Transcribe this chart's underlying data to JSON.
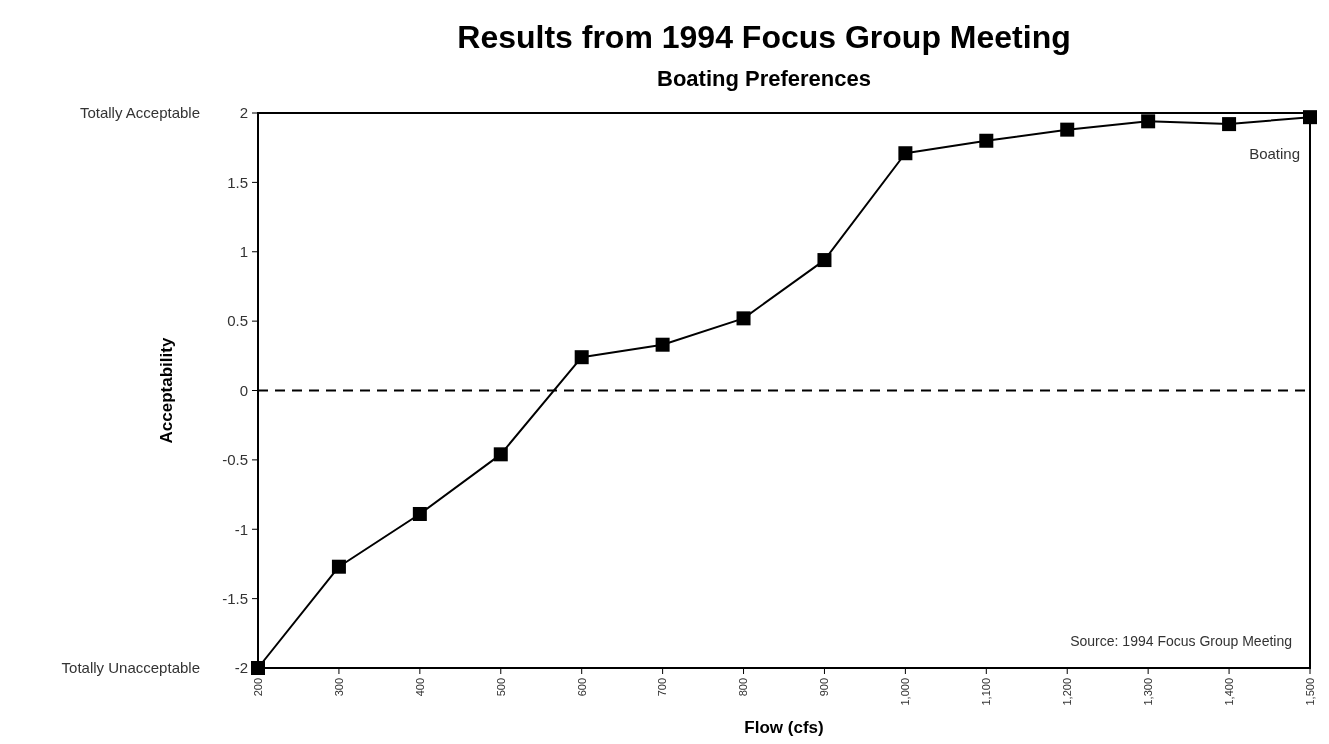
{
  "chart_data": {
    "type": "line",
    "title": "Results from 1994 Focus Group Meeting",
    "subtitle": "Boating Preferences",
    "xlabel": "Flow (cfs)",
    "ylabel": "Acceptability",
    "x": [
      200,
      300,
      400,
      500,
      600,
      700,
      800,
      900,
      1000,
      1100,
      1200,
      1300,
      1400,
      1500
    ],
    "series": [
      {
        "name": "Boating",
        "color": "#000000",
        "values": [
          -2,
          -1.27,
          -0.89,
          -0.46,
          0.24,
          0.33,
          0.52,
          0.94,
          1.71,
          1.8,
          1.88,
          1.94,
          1.92,
          1.97
        ]
      }
    ],
    "xlim": [
      200,
      1500
    ],
    "xticks": [
      200,
      300,
      400,
      500,
      600,
      700,
      800,
      900,
      {
        "value": 1000,
        "label": "1,000"
      },
      {
        "value": 1100,
        "label": "1,100"
      },
      {
        "value": 1200,
        "label": "1,200"
      },
      {
        "value": 1300,
        "label": "1,300"
      },
      {
        "value": 1400,
        "label": "1,400"
      },
      {
        "value": 1500,
        "label": "1,500"
      }
    ],
    "ylim": [
      -2,
      2
    ],
    "yticks": [
      -2,
      -1.5,
      -1,
      -0.5,
      0,
      0.5,
      1,
      1.5,
      2
    ],
    "ref_lines": [
      {
        "axis": "y",
        "value": 0,
        "line_style": "dashed",
        "color": "#000000"
      }
    ],
    "annotations": [
      "Totally Acceptable",
      "Totally Unacceptable",
      "Source: 1994 Focus Group Meeting"
    ],
    "marker": "square",
    "line_style": "solid",
    "grid": false
  }
}
